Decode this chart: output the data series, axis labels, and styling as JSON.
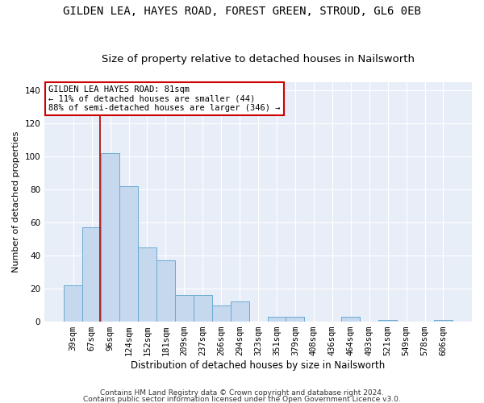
{
  "title1": "GILDEN LEA, HAYES ROAD, FOREST GREEN, STROUD, GL6 0EB",
  "title2": "Size of property relative to detached houses in Nailsworth",
  "xlabel": "Distribution of detached houses by size in Nailsworth",
  "ylabel": "Number of detached properties",
  "categories": [
    "39sqm",
    "67sqm",
    "96sqm",
    "124sqm",
    "152sqm",
    "181sqm",
    "209sqm",
    "237sqm",
    "266sqm",
    "294sqm",
    "323sqm",
    "351sqm",
    "379sqm",
    "408sqm",
    "436sqm",
    "464sqm",
    "493sqm",
    "521sqm",
    "549sqm",
    "578sqm",
    "606sqm"
  ],
  "values": [
    22,
    57,
    102,
    82,
    45,
    37,
    16,
    16,
    10,
    12,
    0,
    3,
    3,
    0,
    0,
    3,
    0,
    1,
    0,
    0,
    1
  ],
  "bar_color": "#c5d8ee",
  "bar_edge_color": "#6aaad4",
  "vline_color": "#aa0000",
  "vline_x": 1.43,
  "annotation_text": "GILDEN LEA HAYES ROAD: 81sqm\n← 11% of detached houses are smaller (44)\n88% of semi-detached houses are larger (346) →",
  "annotation_box_color": "#ffffff",
  "annotation_box_edge": "#cc0000",
  "ylim": [
    0,
    145
  ],
  "yticks": [
    0,
    20,
    40,
    60,
    80,
    100,
    120,
    140
  ],
  "plot_bg_color": "#e8eef8",
  "grid_color": "#ffffff",
  "fig_bg_color": "#ffffff",
  "footer1": "Contains HM Land Registry data © Crown copyright and database right 2024.",
  "footer2": "Contains public sector information licensed under the Open Government Licence v3.0.",
  "title1_fontsize": 10,
  "title2_fontsize": 9.5,
  "xlabel_fontsize": 8.5,
  "ylabel_fontsize": 8,
  "tick_fontsize": 7.5,
  "annotation_fontsize": 7.5,
  "footer_fontsize": 6.5
}
